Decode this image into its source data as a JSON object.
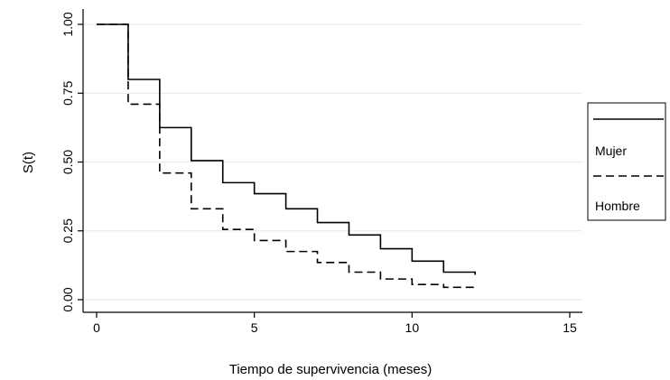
{
  "chart_data": {
    "type": "line",
    "step": true,
    "xlabel": "Tiempo de supervivencia (meses)",
    "ylabel": "S(t)",
    "xlim": [
      0,
      15
    ],
    "ylim": [
      0,
      1
    ],
    "xticks": [
      0,
      5,
      10,
      15
    ],
    "xtick_labels": [
      "0",
      "5",
      "10",
      "15"
    ],
    "yticks": [
      0,
      0.25,
      0.5,
      0.75,
      1
    ],
    "ytick_labels": [
      "0.00",
      "0.25",
      "0.50",
      "0.75",
      "1.00"
    ],
    "grid": "horizontal",
    "legend_position": "right",
    "series": [
      {
        "name": "Mujer",
        "line_style": "solid",
        "color": "#000000",
        "x": [
          0,
          1,
          2,
          3,
          4,
          5,
          6,
          7,
          8,
          9,
          10,
          11,
          12
        ],
        "y": [
          1.0,
          0.8,
          0.625,
          0.505,
          0.425,
          0.385,
          0.33,
          0.28,
          0.235,
          0.185,
          0.14,
          0.1,
          0.09
        ]
      },
      {
        "name": "Hombre",
        "line_style": "dashed",
        "color": "#000000",
        "x": [
          0,
          1,
          2,
          3,
          4,
          5,
          6,
          7,
          8,
          9,
          10,
          11,
          12
        ],
        "y": [
          1.0,
          0.71,
          0.46,
          0.33,
          0.255,
          0.215,
          0.175,
          0.135,
          0.1,
          0.075,
          0.055,
          0.045,
          0.035
        ]
      }
    ]
  }
}
